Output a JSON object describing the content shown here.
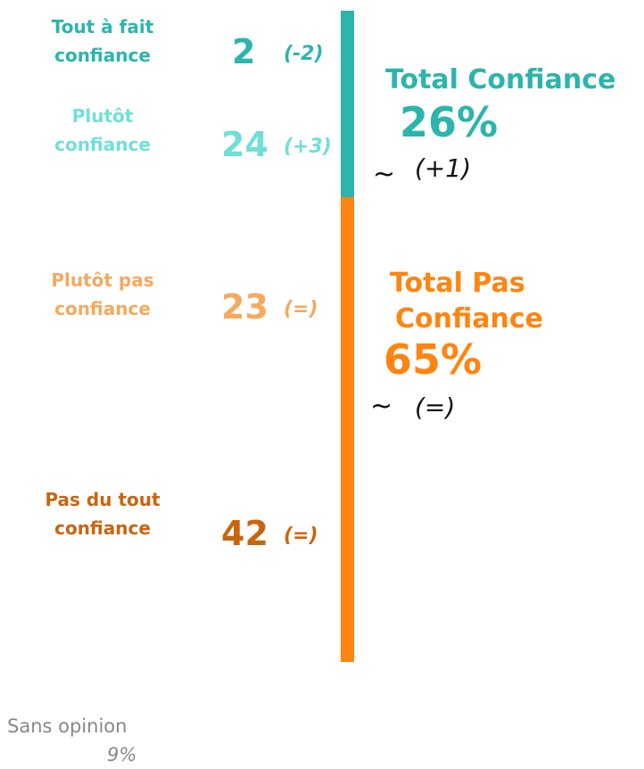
{
  "items": [
    {
      "label": [
        "Tout à fait",
        "confiance"
      ],
      "value": 2,
      "change": "(-2)",
      "color": "#2bb5ac"
    },
    {
      "label": [
        "Plutôt",
        "confiance"
      ],
      "value": 24,
      "change": "(+3)",
      "color": "#6fe0d8"
    },
    {
      "label": [
        "Plutôt pas",
        "confiance"
      ],
      "value": 23,
      "change": "(=)",
      "color": "#f5a95e"
    },
    {
      "label": [
        "Pas du tout",
        "confiance"
      ],
      "value": 42,
      "change": "(=)",
      "color": "#c9650f"
    }
  ],
  "totals": [
    {
      "title": [
        "Total Confiance"
      ],
      "value": 26,
      "value_label": "26%",
      "trend": "~",
      "change": "(+1)",
      "color": "#2bb5ac"
    },
    {
      "title": [
        "Total Pas",
        "Confiance"
      ],
      "value": 65,
      "value_label": "65%",
      "trend": "~",
      "change": "(=)",
      "color": "#ff8410"
    }
  ],
  "no_opinion": {
    "label": "Sans opinion",
    "value": 9,
    "value_label": "9%"
  }
}
